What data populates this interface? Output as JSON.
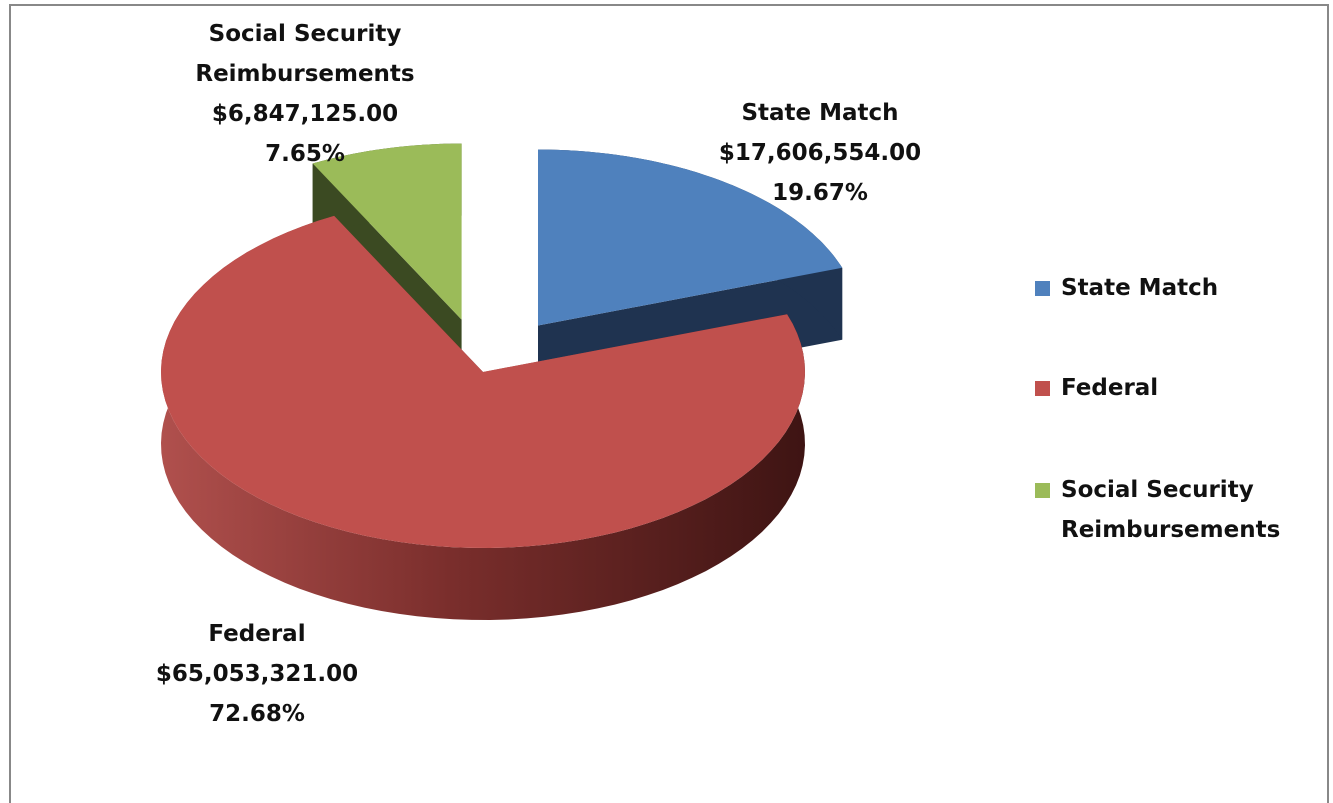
{
  "chart_data": {
    "type": "pie",
    "categories": [
      "State Match",
      "Federal",
      "Social Security Reimbursements"
    ],
    "values": [
      17606554,
      65053321,
      6847125
    ],
    "value_labels": [
      "$17,606,554.00",
      "$65,053,321.00",
      "$6,847,125.00"
    ],
    "percents": [
      19.67,
      72.68,
      7.65
    ],
    "percent_labels": [
      "19.67%",
      "72.68%",
      "7.65%"
    ],
    "colors": [
      "#4f81bd",
      "#c0504d",
      "#9bbb59"
    ],
    "legend": "right"
  }
}
